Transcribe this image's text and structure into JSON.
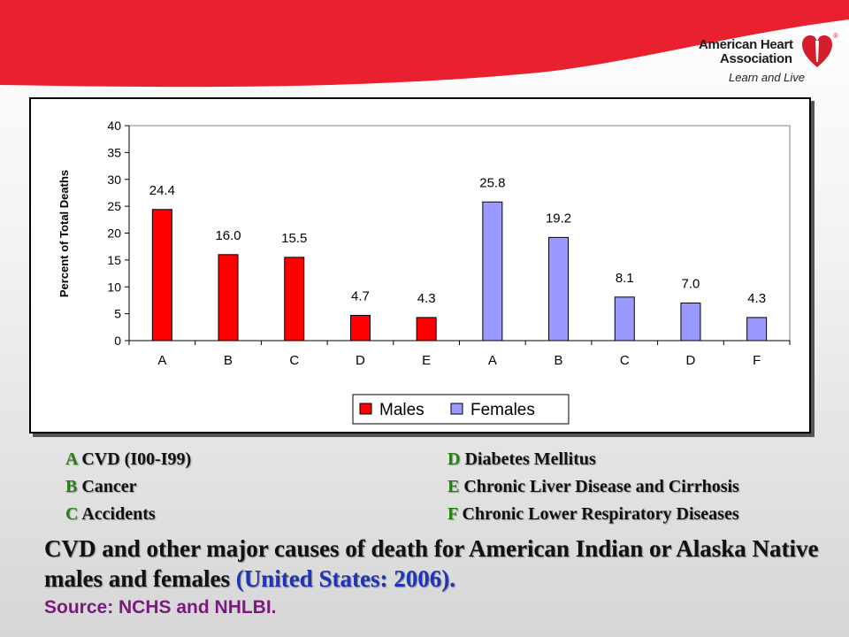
{
  "header": {
    "logo_line1": "American Heart",
    "logo_line2": "Association",
    "logo_tagline": "Learn and Live",
    "logo_mark": "®",
    "banner_color": "#e8202f"
  },
  "chart_data": {
    "type": "bar",
    "categories": [
      "A",
      "B",
      "C",
      "D",
      "E",
      "A",
      "B",
      "C",
      "D",
      "F"
    ],
    "series": [
      {
        "name": "Males",
        "color": "#ff0000",
        "values": [
          24.4,
          16.0,
          15.5,
          4.7,
          4.3,
          null,
          null,
          null,
          null,
          null
        ],
        "labels": [
          "24.4",
          "16.0",
          "15.5",
          "4.7",
          "4.3"
        ]
      },
      {
        "name": "Females",
        "color": "#9999ff",
        "values": [
          null,
          null,
          null,
          null,
          null,
          25.8,
          19.2,
          8.1,
          7.0,
          4.3
        ],
        "labels": [
          "25.8",
          "19.2",
          "8.1",
          "7.0",
          "4.3"
        ]
      }
    ],
    "ylabel": "Percent of Total Deaths",
    "xlabel": "",
    "ylim": [
      0,
      40
    ],
    "yticks": [
      0,
      5,
      10,
      15,
      20,
      25,
      30,
      35,
      40
    ],
    "grid": false,
    "legend_position": "bottom-center"
  },
  "legend_keys": [
    {
      "key": "A",
      "text": " CVD (I00-I99)"
    },
    {
      "key": "B",
      "text": " Cancer"
    },
    {
      "key": "C",
      "text": " Accidents"
    },
    {
      "key": "D",
      "text": " Diabetes Mellitus"
    },
    {
      "key": "E",
      "text": " Chronic Liver Disease and Cirrhosis"
    },
    {
      "key": "F",
      "text": " Chronic Lower Respiratory Diseases"
    }
  ],
  "caption": {
    "main": "CVD and other major causes of death for American Indian or Alaska Native males and females ",
    "highlight": "(United States: 2006).",
    "source": "Source: NCHS and NHLBI."
  }
}
